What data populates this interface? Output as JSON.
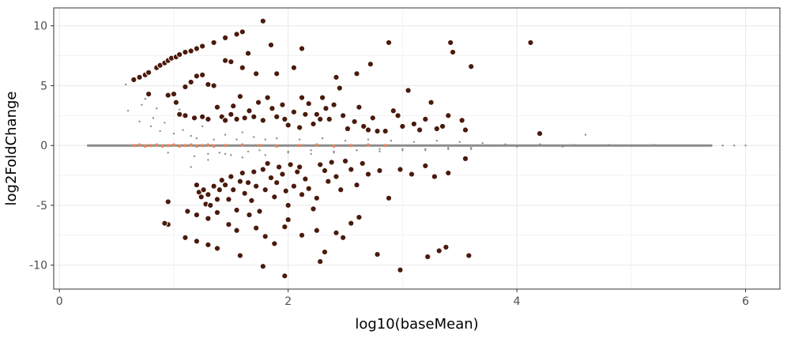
{
  "chart_data": {
    "type": "scatter",
    "title": "",
    "xlabel": "log10(baseMean)",
    "ylabel": "log2FoldChange",
    "xlim": [
      -0.05,
      6.3
    ],
    "ylim": [
      -12,
      11.5
    ],
    "x_ticks": [
      0,
      2,
      4,
      6
    ],
    "y_ticks": [
      10,
      5,
      0,
      -5,
      -10
    ],
    "x_tick_labels": [
      "0",
      "2",
      "4",
      "6"
    ],
    "y_tick_labels": [
      "10",
      "5",
      "0",
      "-5",
      "-10"
    ],
    "grid": true,
    "legend": "none",
    "colors": {
      "significant_fill": "#4a1a0c",
      "significant_stroke": "#ffffff",
      "near_zero_significant": "#e8855a",
      "non_significant": "#8c8c8c",
      "panel_border": "#333333",
      "grid": "#ebebeb"
    },
    "series": [
      {
        "role": "significant",
        "points": [
          [
            0.65,
            5.5
          ],
          [
            0.7,
            5.7
          ],
          [
            0.75,
            5.9
          ],
          [
            0.78,
            6.1
          ],
          [
            0.85,
            6.5
          ],
          [
            0.88,
            6.7
          ],
          [
            0.92,
            6.9
          ],
          [
            0.95,
            7.1
          ],
          [
            0.98,
            7.3
          ],
          [
            1.02,
            7.4
          ],
          [
            1.05,
            7.6
          ],
          [
            1.1,
            7.8
          ],
          [
            1.15,
            7.9
          ],
          [
            1.2,
            8.1
          ],
          [
            1.25,
            8.3
          ],
          [
            1.35,
            8.6
          ],
          [
            1.45,
            9.0
          ],
          [
            1.55,
            9.3
          ],
          [
            1.6,
            9.5
          ],
          [
            1.78,
            10.4
          ],
          [
            0.78,
            4.3
          ],
          [
            0.95,
            4.2
          ],
          [
            1.0,
            4.3
          ],
          [
            1.02,
            3.6
          ],
          [
            1.1,
            4.9
          ],
          [
            1.15,
            5.3
          ],
          [
            1.2,
            5.8
          ],
          [
            1.25,
            5.9
          ],
          [
            1.3,
            5.1
          ],
          [
            1.35,
            5.0
          ],
          [
            1.45,
            7.1
          ],
          [
            1.5,
            7.0
          ],
          [
            1.6,
            6.5
          ],
          [
            1.65,
            7.7
          ],
          [
            1.72,
            6.0
          ],
          [
            1.85,
            8.4
          ],
          [
            1.9,
            6.0
          ],
          [
            2.05,
            6.5
          ],
          [
            2.12,
            8.1
          ],
          [
            2.42,
            5.7
          ],
          [
            2.6,
            6.0
          ],
          [
            2.72,
            6.8
          ],
          [
            2.88,
            8.6
          ],
          [
            3.42,
            8.6
          ],
          [
            3.44,
            7.8
          ],
          [
            3.6,
            6.6
          ],
          [
            4.12,
            8.6
          ],
          [
            1.05,
            2.6
          ],
          [
            1.1,
            2.5
          ],
          [
            1.18,
            2.3
          ],
          [
            1.25,
            2.4
          ],
          [
            1.3,
            2.2
          ],
          [
            1.38,
            3.2
          ],
          [
            1.42,
            2.4
          ],
          [
            1.45,
            2.1
          ],
          [
            1.5,
            2.6
          ],
          [
            1.52,
            3.3
          ],
          [
            1.55,
            2.2
          ],
          [
            1.58,
            4.1
          ],
          [
            1.62,
            2.3
          ],
          [
            1.66,
            2.9
          ],
          [
            1.7,
            2.4
          ],
          [
            1.74,
            3.6
          ],
          [
            1.78,
            2.1
          ],
          [
            1.82,
            4.0
          ],
          [
            1.86,
            3.1
          ],
          [
            1.9,
            2.4
          ],
          [
            1.95,
            3.4
          ],
          [
            1.97,
            2.2
          ],
          [
            2.0,
            1.7
          ],
          [
            2.05,
            2.8
          ],
          [
            2.1,
            1.5
          ],
          [
            2.12,
            4.0
          ],
          [
            2.15,
            2.6
          ],
          [
            2.18,
            3.5
          ],
          [
            2.22,
            1.8
          ],
          [
            2.25,
            2.6
          ],
          [
            2.28,
            2.2
          ],
          [
            2.3,
            4.0
          ],
          [
            2.33,
            3.1
          ],
          [
            2.36,
            2.2
          ],
          [
            2.4,
            3.4
          ],
          [
            2.45,
            4.8
          ],
          [
            2.48,
            2.5
          ],
          [
            2.52,
            1.4
          ],
          [
            2.58,
            2.0
          ],
          [
            2.62,
            3.2
          ],
          [
            2.66,
            1.6
          ],
          [
            2.7,
            1.3
          ],
          [
            2.74,
            2.3
          ],
          [
            2.78,
            1.2
          ],
          [
            2.85,
            1.2
          ],
          [
            2.92,
            2.9
          ],
          [
            2.96,
            2.5
          ],
          [
            3.0,
            1.6
          ],
          [
            3.05,
            4.6
          ],
          [
            3.1,
            1.8
          ],
          [
            3.15,
            1.3
          ],
          [
            3.2,
            2.2
          ],
          [
            3.25,
            3.6
          ],
          [
            3.3,
            1.4
          ],
          [
            3.35,
            1.6
          ],
          [
            3.4,
            2.5
          ],
          [
            3.52,
            2.1
          ],
          [
            3.55,
            1.3
          ],
          [
            4.2,
            1.0
          ],
          [
            0.95,
            -4.7
          ],
          [
            0.95,
            -6.6
          ],
          [
            1.2,
            -3.3
          ],
          [
            1.22,
            -3.9
          ],
          [
            1.24,
            -4.3
          ],
          [
            1.26,
            -3.7
          ],
          [
            1.28,
            -4.9
          ],
          [
            1.3,
            -4.1
          ],
          [
            1.32,
            -5.0
          ],
          [
            1.35,
            -3.4
          ],
          [
            1.38,
            -4.5
          ],
          [
            1.4,
            -3.7
          ],
          [
            1.42,
            -2.9
          ],
          [
            1.45,
            -3.3
          ],
          [
            1.48,
            -4.5
          ],
          [
            1.5,
            -2.6
          ],
          [
            1.52,
            -3.7
          ],
          [
            1.55,
            -5.4
          ],
          [
            1.58,
            -3.0
          ],
          [
            1.6,
            -2.3
          ],
          [
            1.62,
            -4.0
          ],
          [
            1.65,
            -3.1
          ],
          [
            1.68,
            -4.6
          ],
          [
            1.7,
            -2.2
          ],
          [
            1.72,
            -3.4
          ],
          [
            1.75,
            -5.5
          ],
          [
            1.78,
            -2.0
          ],
          [
            1.8,
            -3.7
          ],
          [
            1.82,
            -1.5
          ],
          [
            1.85,
            -2.7
          ],
          [
            1.88,
            -4.3
          ],
          [
            1.9,
            -3.1
          ],
          [
            1.92,
            -1.8
          ],
          [
            1.95,
            -2.4
          ],
          [
            1.98,
            -3.8
          ],
          [
            2.0,
            -5.0
          ],
          [
            2.02,
            -1.6
          ],
          [
            2.05,
            -3.4
          ],
          [
            2.08,
            -2.2
          ],
          [
            2.1,
            -1.8
          ],
          [
            2.12,
            -4.1
          ],
          [
            2.15,
            -2.8
          ],
          [
            2.18,
            -3.6
          ],
          [
            2.22,
            -5.3
          ],
          [
            2.25,
            -4.4
          ],
          [
            2.28,
            -1.6
          ],
          [
            2.32,
            -2.1
          ],
          [
            2.35,
            -3.0
          ],
          [
            2.38,
            -1.4
          ],
          [
            2.42,
            -2.6
          ],
          [
            2.46,
            -3.7
          ],
          [
            2.5,
            -1.3
          ],
          [
            2.55,
            -2.0
          ],
          [
            2.6,
            -3.3
          ],
          [
            2.65,
            -1.5
          ],
          [
            2.7,
            -2.4
          ],
          [
            2.8,
            -2.1
          ],
          [
            2.88,
            -4.4
          ],
          [
            2.98,
            -2.0
          ],
          [
            3.08,
            -2.4
          ],
          [
            3.2,
            -1.7
          ],
          [
            3.28,
            -2.6
          ],
          [
            3.4,
            -2.3
          ],
          [
            3.55,
            -1.1
          ],
          [
            1.12,
            -5.5
          ],
          [
            1.2,
            -5.8
          ],
          [
            1.3,
            -6.1
          ],
          [
            1.38,
            -5.6
          ],
          [
            1.48,
            -6.6
          ],
          [
            1.55,
            -7.1
          ],
          [
            1.66,
            -5.8
          ],
          [
            1.72,
            -6.9
          ],
          [
            1.8,
            -7.6
          ],
          [
            1.97,
            -6.8
          ],
          [
            2.0,
            -6.2
          ],
          [
            2.12,
            -7.5
          ],
          [
            2.25,
            -7.1
          ],
          [
            2.28,
            -9.7
          ],
          [
            2.32,
            -8.9
          ],
          [
            2.42,
            -7.3
          ],
          [
            2.48,
            -7.7
          ],
          [
            2.55,
            -6.5
          ],
          [
            2.62,
            -6.0
          ],
          [
            2.78,
            -9.1
          ],
          [
            2.98,
            -10.4
          ],
          [
            3.22,
            -9.3
          ],
          [
            3.32,
            -8.8
          ],
          [
            3.38,
            -8.5
          ],
          [
            3.58,
            -9.2
          ],
          [
            0.92,
            -6.5
          ],
          [
            1.1,
            -7.7
          ],
          [
            1.2,
            -8.0
          ],
          [
            1.3,
            -8.3
          ],
          [
            1.38,
            -8.6
          ],
          [
            1.58,
            -9.2
          ],
          [
            1.78,
            -10.1
          ],
          [
            1.88,
            -8.2
          ],
          [
            1.97,
            -10.9
          ]
        ]
      },
      {
        "role": "near_zero_significant",
        "points": [
          [
            0.65,
            0.0
          ],
          [
            0.7,
            0.05
          ],
          [
            0.75,
            -0.05
          ],
          [
            0.8,
            0.0
          ],
          [
            0.85,
            0.05
          ],
          [
            0.9,
            -0.05
          ],
          [
            0.95,
            0.0
          ],
          [
            1.0,
            0.05
          ],
          [
            1.05,
            -0.05
          ],
          [
            1.1,
            0.0
          ],
          [
            1.15,
            0.05
          ],
          [
            1.2,
            -0.05
          ],
          [
            1.25,
            0.0
          ],
          [
            1.3,
            0.05
          ],
          [
            1.35,
            -0.05
          ],
          [
            1.45,
            0.0
          ],
          [
            1.6,
            0.05
          ],
          [
            1.75,
            0.0
          ],
          [
            1.9,
            -0.05
          ],
          [
            2.1,
            0.0
          ],
          [
            2.25,
            0.05
          ],
          [
            2.4,
            -0.05
          ],
          [
            2.55,
            0.0
          ],
          [
            2.7,
            0.05
          ],
          [
            2.85,
            0.0
          ]
        ]
      },
      {
        "role": "non_significant",
        "points": [
          [
            0.58,
            5.1
          ],
          [
            0.6,
            2.9
          ],
          [
            0.7,
            2.0
          ],
          [
            0.72,
            3.4
          ],
          [
            0.75,
            3.9
          ],
          [
            0.8,
            1.6
          ],
          [
            0.82,
            2.3
          ],
          [
            0.85,
            3.1
          ],
          [
            0.88,
            1.2
          ],
          [
            0.92,
            1.9
          ],
          [
            1.0,
            1.0
          ],
          [
            1.05,
            3.0
          ],
          [
            1.08,
            1.3
          ],
          [
            1.15,
            0.8
          ],
          [
            1.18,
            -0.9
          ],
          [
            1.2,
            0.6
          ],
          [
            1.25,
            1.6
          ],
          [
            1.3,
            -0.7
          ],
          [
            1.35,
            0.5
          ],
          [
            1.4,
            -0.6
          ],
          [
            1.45,
            0.9
          ],
          [
            1.5,
            -0.8
          ],
          [
            1.55,
            0.5
          ],
          [
            1.6,
            1.1
          ],
          [
            1.65,
            -0.5
          ],
          [
            1.7,
            0.7
          ],
          [
            1.75,
            -0.4
          ],
          [
            1.8,
            0.5
          ],
          [
            1.9,
            0.6
          ],
          [
            2.0,
            -0.6
          ],
          [
            2.1,
            0.5
          ],
          [
            2.2,
            -0.4
          ],
          [
            2.3,
            0.6
          ],
          [
            2.4,
            -0.5
          ],
          [
            2.5,
            0.4
          ],
          [
            2.6,
            -0.4
          ],
          [
            2.7,
            0.5
          ],
          [
            2.8,
            -0.3
          ],
          [
            2.9,
            0.4
          ],
          [
            3.0,
            -0.3
          ],
          [
            3.1,
            0.3
          ],
          [
            3.2,
            -0.3
          ],
          [
            3.3,
            0.4
          ],
          [
            3.4,
            -0.2
          ],
          [
            3.5,
            0.3
          ],
          [
            3.6,
            -0.2
          ],
          [
            3.7,
            0.2
          ],
          [
            3.8,
            0.0
          ],
          [
            3.9,
            0.1
          ],
          [
            4.0,
            -0.1
          ],
          [
            4.1,
            0.0
          ],
          [
            4.2,
            0.1
          ],
          [
            4.3,
            0.0
          ],
          [
            4.4,
            -0.1
          ],
          [
            4.5,
            0.05
          ],
          [
            4.6,
            0.9
          ],
          [
            4.7,
            0.0
          ],
          [
            4.8,
            0.05
          ],
          [
            4.9,
            0.0
          ],
          [
            5.0,
            -0.05
          ],
          [
            5.1,
            0.0
          ],
          [
            5.2,
            0.05
          ],
          [
            5.3,
            0.0
          ],
          [
            5.4,
            0.0
          ],
          [
            5.5,
            0.0
          ],
          [
            5.6,
            0.0
          ],
          [
            5.7,
            0.0
          ],
          [
            5.8,
            0.0
          ],
          [
            5.9,
            0.0
          ],
          [
            6.0,
            0.0
          ],
          [
            0.95,
            -0.6
          ],
          [
            1.15,
            -1.8
          ],
          [
            1.3,
            -1.2
          ],
          [
            1.45,
            -0.7
          ],
          [
            1.6,
            -1.0
          ],
          [
            1.8,
            -0.8
          ],
          [
            2.0,
            -0.5
          ],
          [
            2.2,
            -0.7
          ],
          [
            2.4,
            -0.6
          ],
          [
            2.6,
            -0.4
          ],
          [
            2.8,
            -0.5
          ],
          [
            3.0,
            -0.4
          ],
          [
            3.2,
            -0.4
          ],
          [
            3.4,
            -0.3
          ],
          [
            3.6,
            -0.3
          ]
        ]
      },
      {
        "role": "non_significant_band",
        "x_range": [
          0.25,
          5.7
        ],
        "y": 0.0
      }
    ]
  }
}
